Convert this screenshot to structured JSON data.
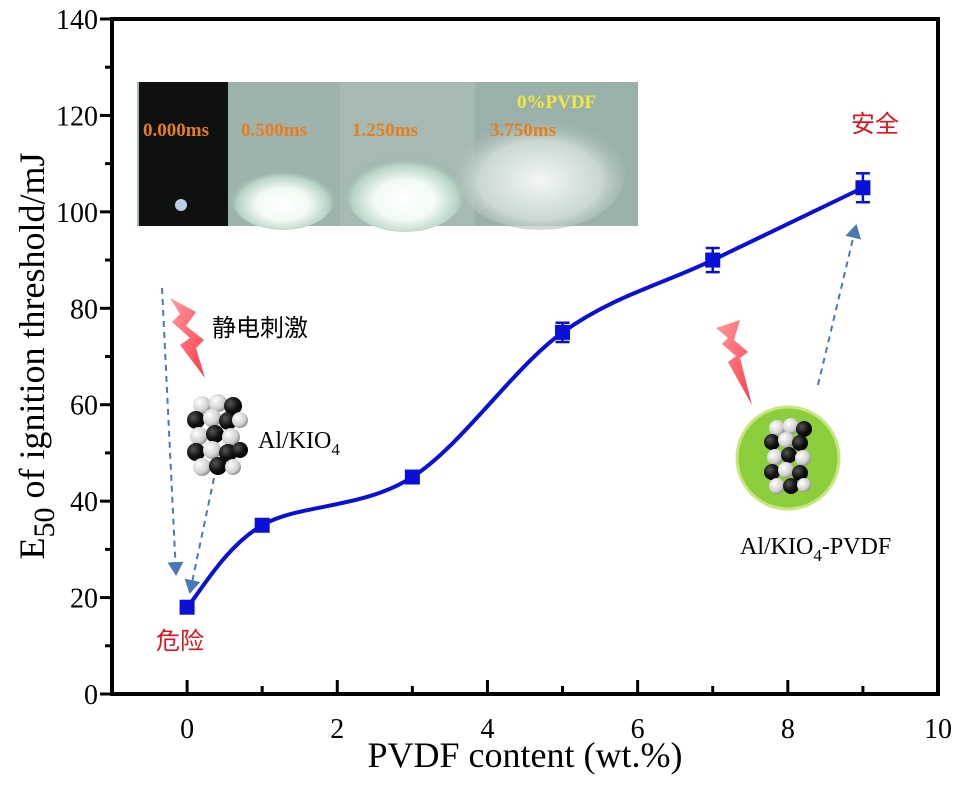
{
  "chart_data": {
    "type": "scatter",
    "x": [
      0,
      1,
      3,
      5,
      7,
      9
    ],
    "y": [
      18,
      35,
      45,
      75,
      90,
      105
    ],
    "y_error": [
      0,
      0,
      0,
      2,
      2.5,
      3
    ],
    "fit_curve": true,
    "series_color": "#0a10d8",
    "xlabel": "PVDF content (wt.%)",
    "ylabel_main": "E",
    "ylabel_sub": "50",
    "ylabel_rest": " of ignition threshold/mJ",
    "xlim": [
      -1,
      10
    ],
    "ylim": [
      0,
      140
    ],
    "xticks": [
      0,
      2,
      4,
      6,
      8,
      10
    ],
    "yticks": [
      0,
      20,
      40,
      60,
      80,
      100,
      120,
      140
    ],
    "grid": false,
    "annotations": {
      "danger_label": "危险",
      "safe_label": "安全",
      "stimulus_label": "静电刺激",
      "material_plain": "Al/KIO",
      "material_plain_sub": "4",
      "material_coated": "Al/KIO",
      "material_coated_sub": "4",
      "material_coated_suffix": "-PVDF",
      "accent_red": "#e0141e",
      "coating_green": "#8ccd3c"
    },
    "inset": {
      "frames": [
        "0.000ms",
        "0.500ms",
        "1.250ms",
        "3.750ms"
      ],
      "caption": "0%PVDF",
      "frame_label_color": "#e67e1e",
      "caption_color": "#f4e83a"
    }
  }
}
